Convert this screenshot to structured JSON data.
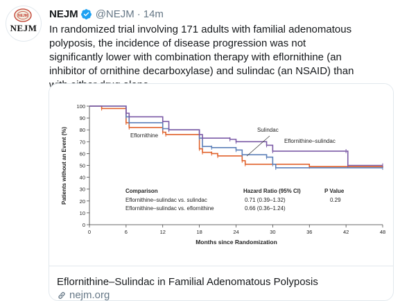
{
  "account": {
    "display_name": "NEJM",
    "handle": "@NEJM",
    "separator": "·",
    "timestamp": "14m",
    "avatar_text": "NEJM",
    "avatar_seal_text": "NEJM"
  },
  "tweet": {
    "text": "In randomized trial involving 171 adults with familial adenomatous polyposis, the incidence of disease progression was not significantly lower with combination therapy with eflornithine (an inhibitor of ornithine decarboxylase) and sulindac (an NSAID) than with either drug alone."
  },
  "link_card": {
    "title": "Eflornithine–Sulindac in Familial Adenomatous Polyposis",
    "domain": "nejm.org"
  },
  "colors": {
    "eflornithine": "#e0612a",
    "sulindac": "#5b7fb8",
    "eflornithine_sulindac": "#7b5aa6",
    "verified": "#1da1f2"
  },
  "chart_data": {
    "type": "line",
    "xlabel": "Months since Randomization",
    "ylabel": "Patients without an Event (%)",
    "xlim": [
      0,
      48
    ],
    "ylim": [
      0,
      100
    ],
    "x_ticks": [
      0,
      6,
      12,
      18,
      24,
      30,
      36,
      42,
      48
    ],
    "y_ticks": [
      0,
      10,
      20,
      30,
      40,
      50,
      60,
      70,
      80,
      90,
      100
    ],
    "series": [
      {
        "name": "Eflornithine",
        "color_key": "eflornithine",
        "steps": [
          [
            0,
            100
          ],
          [
            2,
            98
          ],
          [
            6,
            86
          ],
          [
            6.5,
            82
          ],
          [
            12,
            78
          ],
          [
            12.5,
            76
          ],
          [
            18,
            64
          ],
          [
            18.5,
            61
          ],
          [
            20,
            60
          ],
          [
            21,
            58
          ],
          [
            25,
            54
          ],
          [
            25.5,
            51
          ],
          [
            36,
            49
          ],
          [
            48,
            48
          ]
        ]
      },
      {
        "name": "Sulindac",
        "color_key": "sulindac",
        "steps": [
          [
            0,
            100
          ],
          [
            6,
            91
          ],
          [
            6.5,
            86
          ],
          [
            12,
            81
          ],
          [
            13,
            80
          ],
          [
            18,
            73
          ],
          [
            18.5,
            66
          ],
          [
            20,
            65
          ],
          [
            24,
            63
          ],
          [
            25,
            59
          ],
          [
            29,
            57
          ],
          [
            30,
            51
          ],
          [
            30.5,
            48
          ],
          [
            48,
            48
          ]
        ]
      },
      {
        "name": "Eflornithine–sulindac",
        "color_key": "eflornithine_sulindac",
        "steps": [
          [
            0,
            100
          ],
          [
            6,
            94
          ],
          [
            6.5,
            91
          ],
          [
            12,
            87
          ],
          [
            13,
            80
          ],
          [
            18,
            76
          ],
          [
            18.5,
            73
          ],
          [
            23,
            72
          ],
          [
            24,
            70
          ],
          [
            29,
            67
          ],
          [
            30,
            62
          ],
          [
            42,
            62
          ],
          [
            42.3,
            50
          ],
          [
            48,
            50
          ]
        ]
      }
    ],
    "labels": {
      "eflornithine": "Eflornithine",
      "sulindac": "Sulindac",
      "combo": "Eflornithine–sulindac"
    },
    "table": {
      "headers": [
        "Comparison",
        "Hazard Ratio (95% CI)",
        "P Value"
      ],
      "rows": [
        [
          "Eflornithine–sulindac vs. sulindac",
          "0.71 (0.39–1.32)",
          "0.29"
        ],
        [
          "Eflornithine–sulindac vs. eflornithine",
          "0.66 (0.36–1.24)",
          ""
        ]
      ]
    }
  }
}
